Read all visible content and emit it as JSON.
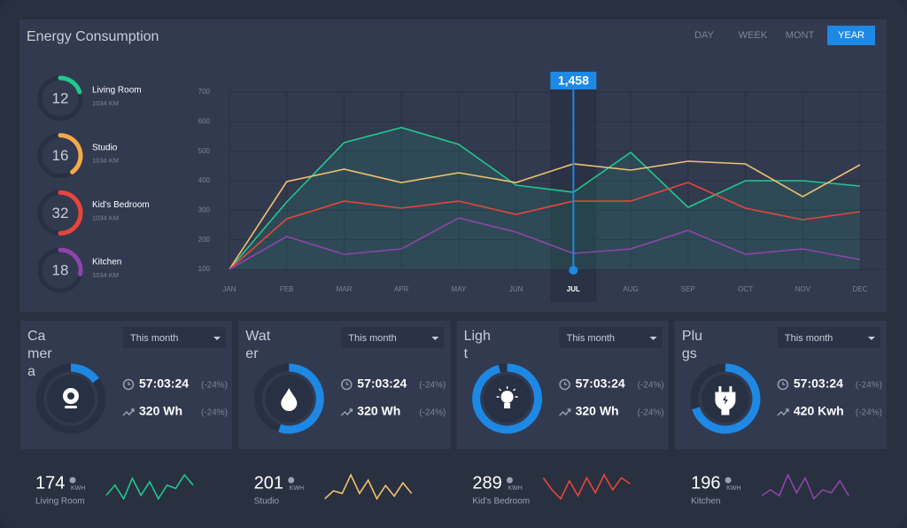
{
  "header": {
    "title": "Energy Consumption",
    "tabs": [
      {
        "label": "DAY",
        "active": false
      },
      {
        "label": "WEEK",
        "active": false
      },
      {
        "label": "MONT",
        "active": false
      },
      {
        "label": "YEAR",
        "active": true
      }
    ]
  },
  "rooms": [
    {
      "value": 12,
      "name": "Living Room",
      "detail": "1034 KM",
      "color": "#1fc98e",
      "progress": 20
    },
    {
      "value": 16,
      "name": "Studio",
      "detail": "1034 KM",
      "color": "#f5a94a",
      "progress": 40
    },
    {
      "value": 32,
      "name": "Kid's Bedroom",
      "detail": "1034 KM",
      "color": "#e8453c",
      "progress": 50
    },
    {
      "value": 18,
      "name": "Kitchen",
      "detail": "1034 KM",
      "color": "#8e44ad",
      "progress": 28
    }
  ],
  "chart_data": {
    "type": "line",
    "categories": [
      "JAN",
      "FEB",
      "MAR",
      "APR",
      "MAY",
      "JUN",
      "JUL",
      "AUG",
      "SEP",
      "OCT",
      "NOV",
      "DEC"
    ],
    "ylim": [
      100,
      700
    ],
    "yticks": [
      100,
      200,
      300,
      400,
      500,
      600,
      700
    ],
    "grid": true,
    "highlight": {
      "category": "JUL",
      "label": "1,458"
    },
    "series": [
      {
        "color": "#1fc98e",
        "area": true,
        "values": [
          100,
          328,
          529,
          580,
          523,
          385,
          361,
          496,
          310,
          400,
          400,
          382
        ]
      },
      {
        "color": "#f0c070",
        "values": [
          100,
          397,
          439,
          394,
          427,
          394,
          457,
          436,
          466,
          457,
          346,
          454
        ]
      },
      {
        "color": "#e8453c",
        "values": [
          100,
          271,
          331,
          307,
          331,
          286,
          331,
          331,
          394,
          307,
          268,
          295
        ]
      },
      {
        "color": "#8e44ad",
        "values": [
          100,
          211,
          151,
          169,
          274,
          226,
          154,
          169,
          232,
          151,
          169,
          133
        ]
      }
    ]
  },
  "devices": [
    {
      "name": "Camera",
      "period": "This month",
      "time": "57:03:24",
      "time_change": "(-24%)",
      "energy": "320 Wh",
      "energy_change": "(-24%)",
      "progress": 15,
      "icon": "camera"
    },
    {
      "name": "Water",
      "period": "This month",
      "time": "57:03:24",
      "time_change": "(-24%)",
      "energy": "320 Wh",
      "energy_change": "(-24%)",
      "progress": 55,
      "icon": "drop"
    },
    {
      "name": "Light",
      "period": "This month",
      "time": "57:03:24",
      "time_change": "(-24%)",
      "energy": "320 Wh",
      "energy_change": "(-24%)",
      "progress": 96,
      "icon": "bulb"
    },
    {
      "name": "Plugs",
      "period": "This month",
      "time": "57:03:24",
      "time_change": "(-24%)",
      "energy": "420 Kwh",
      "energy_change": "(-24%)",
      "progress": 70,
      "icon": "plug"
    }
  ],
  "summary": [
    {
      "value": 174,
      "unit": "KWH",
      "name": "Living Room",
      "color": "#1fc98e",
      "values": [
        3,
        6,
        2,
        8,
        3,
        7,
        2,
        6,
        5,
        9,
        6
      ]
    },
    {
      "value": 201,
      "unit": "KWH",
      "name": "Studio",
      "color": "#f0c070",
      "values": [
        2,
        5,
        4,
        11,
        4,
        9,
        2,
        7,
        3,
        8,
        4
      ]
    },
    {
      "value": 289,
      "unit": "KWH",
      "name": "Kid's Bedroom",
      "color": "#e8453c",
      "values": [
        8,
        4,
        1,
        7,
        2,
        8,
        3,
        9,
        4,
        8,
        6
      ]
    },
    {
      "value": 196,
      "unit": "KWH",
      "name": "Kitchen",
      "color": "#8e44ad",
      "values": [
        3,
        5,
        3,
        10,
        4,
        9,
        2,
        5,
        4,
        8,
        3
      ]
    }
  ]
}
